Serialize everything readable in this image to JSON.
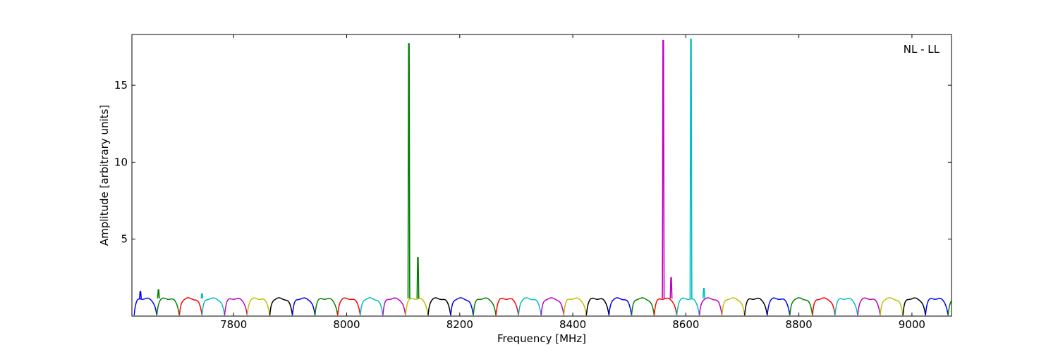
{
  "chart_data": {
    "type": "line",
    "annotation": "NL - LL",
    "xlabel": "Frequency [MHz]",
    "ylabel": "Amplitude [arbitrary units]",
    "xlim": [
      7620,
      9070
    ],
    "ylim": [
      0,
      18.3
    ],
    "x_ticks": [
      7800,
      8000,
      8200,
      8400,
      8600,
      8800,
      9000
    ],
    "y_ticks": [
      5,
      10,
      15
    ],
    "grid": false,
    "legend": "none",
    "channel": {
      "start_mhz": 7624,
      "width_mhz": 40,
      "color_cycle": [
        "#0000ff",
        "#008000",
        "#ff0000",
        "#00bfbf",
        "#bf00bf",
        "#bfbf00",
        "#000000"
      ],
      "baseline_amplitude": 1.15
    },
    "spikes": [
      {
        "x": 7635,
        "y": 1.6,
        "color": "#0000ff"
      },
      {
        "x": 7667,
        "y": 1.7,
        "color": "#008000"
      },
      {
        "x": 7744,
        "y": 1.45,
        "color": "#00bfbf"
      },
      {
        "x": 8110,
        "y": 17.7,
        "color": "#008000"
      },
      {
        "x": 8126,
        "y": 3.8,
        "color": "#008000"
      },
      {
        "x": 8560,
        "y": 17.9,
        "color": "#bf00bf"
      },
      {
        "x": 8574,
        "y": 2.5,
        "color": "#bf00bf"
      },
      {
        "x": 8609,
        "y": 18.0,
        "color": "#00bfbf"
      },
      {
        "x": 8632,
        "y": 1.8,
        "color": "#00bfbf"
      }
    ]
  }
}
